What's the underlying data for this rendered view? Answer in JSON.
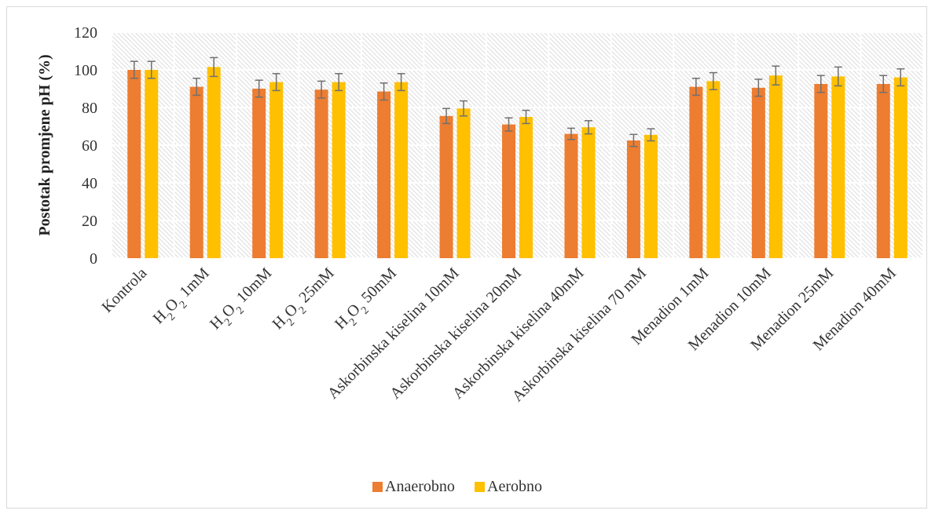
{
  "chart_data": {
    "type": "bar",
    "ylabel": "Postotak promjene pH (%)",
    "xlabel": "",
    "ylim": [
      0,
      120
    ],
    "yticks": [
      0,
      20,
      40,
      60,
      80,
      100,
      120
    ],
    "grid": true,
    "legend_position": "bottom",
    "categories": [
      {
        "main": "Kontrola",
        "sub": "",
        "rest": ""
      },
      {
        "main": "H",
        "sub": "2",
        "rest": "O",
        "sub2": "2",
        "tail": " 1mM"
      },
      {
        "main": "H",
        "sub": "2",
        "rest": "O",
        "sub2": "2",
        "tail": " 10mM"
      },
      {
        "main": "H",
        "sub": "2",
        "rest": "O",
        "sub2": "2",
        "tail": " 25mM"
      },
      {
        "main": "H",
        "sub": "2",
        "rest": "O",
        "sub2": "2",
        "tail": " 50mM"
      },
      {
        "main": "Askorbinska kiselina 10mM",
        "sub": "",
        "rest": ""
      },
      {
        "main": "Askorbinska kiselina 20mM",
        "sub": "",
        "rest": ""
      },
      {
        "main": "Askorbinska kiselina 40mM",
        "sub": "",
        "rest": ""
      },
      {
        "main": "Askorbinska kiselina 70 mM",
        "sub": "",
        "rest": ""
      },
      {
        "main": "Menadion 1mM",
        "sub": "",
        "rest": ""
      },
      {
        "main": "Menadion 10mM",
        "sub": "",
        "rest": ""
      },
      {
        "main": "Menadion 25mM",
        "sub": "",
        "rest": ""
      },
      {
        "main": "Menadion 40mM",
        "sub": "",
        "rest": ""
      }
    ],
    "series": [
      {
        "name": "Anaerobno",
        "color": "#ed7d31",
        "values": [
          100,
          91,
          90,
          89.5,
          88.5,
          75.5,
          71,
          66,
          62.5,
          91,
          90.5,
          92.5,
          92.5
        ],
        "errors": [
          4.5,
          4.5,
          4.5,
          4.5,
          4.5,
          4,
          3.5,
          3,
          3.2,
          4.5,
          4.5,
          4.5,
          4.5
        ]
      },
      {
        "name": "Aerobno",
        "color": "#ffc000",
        "values": [
          100,
          101.5,
          93.5,
          93.5,
          93.5,
          79.5,
          75,
          69.5,
          65.5,
          94,
          97,
          96.5,
          96
        ],
        "errors": [
          4.5,
          5,
          4.5,
          4.5,
          4.5,
          4,
          3.5,
          3.5,
          3.2,
          4.5,
          5,
          5,
          4.5
        ]
      }
    ]
  }
}
